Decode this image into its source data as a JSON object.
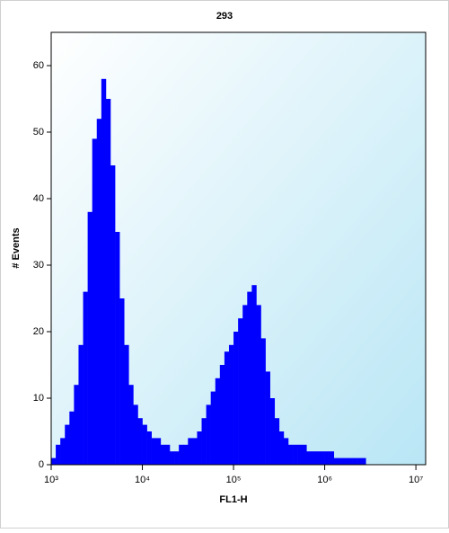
{
  "chart_data": {
    "type": "histogram",
    "title": "293",
    "x_label": "FL1-H",
    "y_label": "# Events",
    "xscale": "log",
    "xlim": [
      1000,
      12800000
    ],
    "xticks": [
      {
        "value": 1000,
        "label": "10³"
      },
      {
        "value": 10000,
        "label": "10⁴"
      },
      {
        "value": 100000,
        "label": "10⁵"
      },
      {
        "value": 1000000,
        "label": "10⁶"
      },
      {
        "value": 10000000,
        "label": "10⁷"
      }
    ],
    "ylim": [
      0,
      65
    ],
    "yticks": [
      0,
      10,
      20,
      30,
      40,
      50,
      60
    ],
    "color": "#0000ff",
    "bins": [
      1000,
      1122,
      1259,
      1413,
      1585,
      1778,
      1995,
      2239,
      2512,
      2818,
      3162,
      3548,
      3981,
      4467,
      5012,
      5623,
      6310,
      7079,
      7943,
      8913,
      10000,
      11220,
      12589,
      14125,
      15849,
      17783,
      19953,
      22387,
      25119,
      28184,
      31623,
      35481,
      39811,
      44668,
      50119,
      56234,
      63096,
      70795,
      79433,
      89125,
      100000,
      112202,
      125893,
      141254,
      158489,
      177828,
      199526,
      223872,
      251189,
      281838,
      316228,
      354813,
      398107,
      446684,
      501187,
      562341,
      630957,
      707946,
      794328,
      891251,
      1000000,
      1122018,
      1258925,
      1412538,
      1584893,
      1778279,
      1995262,
      2238721,
      2511886,
      2818383,
      3162278
    ],
    "counts": [
      1,
      3,
      4,
      6,
      8,
      12,
      18,
      26,
      38,
      49,
      52,
      58,
      55,
      45,
      35,
      25,
      18,
      12,
      9,
      7,
      6,
      5,
      4,
      4,
      3,
      3,
      2,
      2,
      3,
      3,
      4,
      4,
      5,
      7,
      9,
      11,
      13,
      15,
      17,
      18,
      20,
      22,
      24,
      26,
      27,
      24,
      19,
      14,
      10,
      7,
      5,
      4,
      3,
      3,
      3,
      3,
      2,
      2,
      2,
      2,
      2,
      2,
      1,
      1,
      1,
      1,
      1,
      1,
      1,
      0
    ]
  }
}
